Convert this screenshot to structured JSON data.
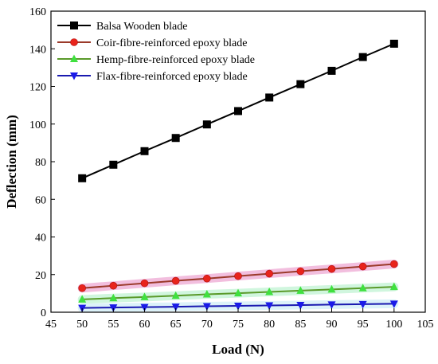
{
  "chart_data": {
    "type": "line",
    "xlabel": "Load (N)",
    "ylabel": "Deflection (mm)",
    "xlim": [
      45,
      105
    ],
    "ylim": [
      0,
      160
    ],
    "xticks": [
      45,
      50,
      55,
      60,
      65,
      70,
      75,
      80,
      85,
      90,
      95,
      100,
      105
    ],
    "yticks": [
      0,
      20,
      40,
      60,
      80,
      100,
      120,
      140,
      160
    ],
    "grid": false,
    "legend_position": "top-left",
    "x": [
      50,
      55,
      60,
      65,
      70,
      75,
      80,
      85,
      90,
      95,
      100
    ],
    "series": [
      {
        "name": "Balsa Wooden blade",
        "color": "#000000",
        "marker": "square",
        "values": [
          71.2,
          78.4,
          85.6,
          92.6,
          99.8,
          106.9,
          114.1,
          121.2,
          128.3,
          135.6,
          142.7
        ]
      },
      {
        "name": "Coir-fibre-reinforced epoxy blade",
        "color": "#e8241c",
        "line_color": "#9b3a2a",
        "marker": "circle",
        "values": [
          12.8,
          14.1,
          15.4,
          16.7,
          17.9,
          19.2,
          20.5,
          21.8,
          23.0,
          24.3,
          25.6
        ]
      },
      {
        "name": "Hemp-fibre-reinforced epoxy blade",
        "color": "#3fe03f",
        "line_color": "#5a9a2a",
        "marker": "triangle-up",
        "values": [
          6.8,
          7.5,
          8.1,
          8.8,
          9.5,
          10.1,
          10.8,
          11.5,
          12.1,
          12.8,
          13.5
        ]
      },
      {
        "name": "Flax-fibre-reinforced epoxy blade",
        "color": "#1a1ae8",
        "line_color": "#1a1ab0",
        "marker": "triangle-down",
        "values": [
          2.3,
          2.5,
          2.7,
          2.9,
          3.2,
          3.4,
          3.6,
          3.8,
          4.1,
          4.3,
          4.5
        ]
      }
    ]
  }
}
